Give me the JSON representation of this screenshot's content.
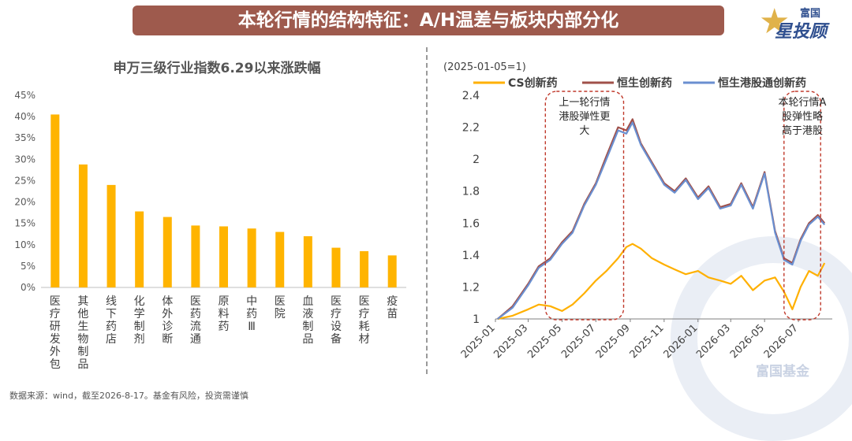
{
  "header": {
    "title": "本轮行情的结构特征：A/H温差与板块内部分化"
  },
  "brand": {
    "top": "富国",
    "main": "星投顾",
    "watermark": "富国基金"
  },
  "footer": {
    "source": "数据来源：wind，截至2026-8-17。基金有风险，投资需谨慎"
  },
  "colors": {
    "bar": "#FFB400",
    "cs": "#FFB000",
    "hs": "#A0504A",
    "hsgt": "#6A8FD0",
    "accent": "#C0392B"
  },
  "chart_data": [
    {
      "type": "bar",
      "title": "申万三级行业指数6.29以来涨跌幅",
      "categories": [
        "医疗研发外包",
        "其他生物制品",
        "线下药店",
        "化学制剂",
        "体外诊断",
        "医药流通",
        "原料药",
        "中药Ⅲ",
        "医院",
        "血液制品",
        "医疗设备",
        "医疗耗材",
        "疫苗"
      ],
      "values": [
        40.5,
        28.8,
        24.0,
        17.8,
        16.5,
        14.5,
        14.3,
        13.8,
        13.0,
        12.0,
        9.3,
        8.5,
        7.5
      ],
      "y_ticks": [
        "0%",
        "5%",
        "10%",
        "15%",
        "20%",
        "25%",
        "30%",
        "35%",
        "40%",
        "45%"
      ],
      "ylim": [
        0,
        45
      ]
    },
    {
      "type": "line",
      "subtitle": "(2025-01-05=1)",
      "x_ticks": [
        "2025-01",
        "2025-03",
        "2025-05",
        "2025-07",
        "2025-09",
        "2025-11",
        "2026-01",
        "2026-03",
        "2026-05",
        "2026-07"
      ],
      "y_ticks": [
        "1",
        "1.2",
        "1.4",
        "1.6",
        "1.8",
        "2",
        "2.2",
        "2.4"
      ],
      "ylim": [
        1,
        2.4
      ],
      "legend_position": "top",
      "series": [
        {
          "name": "CS创新药",
          "color": "#FFB000",
          "x": [
            "2025-01-05",
            "2025-02-01",
            "2025-03-01",
            "2025-03-20",
            "2025-04-10",
            "2025-05-01",
            "2025-05-20",
            "2025-06-10",
            "2025-07-01",
            "2025-07-20",
            "2025-08-10",
            "2025-08-25",
            "2025-09-05",
            "2025-09-20",
            "2025-10-10",
            "2025-11-01",
            "2025-11-20",
            "2025-12-10",
            "2026-01-01",
            "2026-01-20",
            "2026-02-10",
            "2026-03-01",
            "2026-03-20",
            "2026-04-10",
            "2026-05-01",
            "2026-05-20",
            "2026-06-05",
            "2026-06-20",
            "2026-07-05",
            "2026-07-20",
            "2026-08-05",
            "2026-08-17"
          ],
          "y": [
            1.0,
            1.02,
            1.06,
            1.09,
            1.08,
            1.05,
            1.09,
            1.16,
            1.24,
            1.3,
            1.38,
            1.45,
            1.47,
            1.44,
            1.38,
            1.34,
            1.31,
            1.28,
            1.3,
            1.26,
            1.24,
            1.22,
            1.27,
            1.18,
            1.24,
            1.26,
            1.17,
            1.06,
            1.2,
            1.3,
            1.27,
            1.35
          ]
        },
        {
          "name": "恒生创新药",
          "color": "#A0504A",
          "x": [
            "2025-01-05",
            "2025-02-01",
            "2025-03-01",
            "2025-03-20",
            "2025-04-10",
            "2025-05-01",
            "2025-05-20",
            "2025-06-10",
            "2025-07-01",
            "2025-07-20",
            "2025-08-10",
            "2025-08-25",
            "2025-09-05",
            "2025-09-20",
            "2025-10-10",
            "2025-11-01",
            "2025-11-20",
            "2025-12-10",
            "2026-01-01",
            "2026-01-20",
            "2026-02-10",
            "2026-03-01",
            "2026-03-20",
            "2026-04-10",
            "2026-05-01",
            "2026-05-20",
            "2026-06-05",
            "2026-06-20",
            "2026-07-05",
            "2026-07-20",
            "2026-08-05",
            "2026-08-17"
          ],
          "y": [
            1.0,
            1.08,
            1.22,
            1.33,
            1.38,
            1.48,
            1.55,
            1.72,
            1.85,
            2.02,
            2.2,
            2.18,
            2.25,
            2.1,
            1.98,
            1.85,
            1.8,
            1.88,
            1.76,
            1.83,
            1.7,
            1.72,
            1.85,
            1.7,
            1.92,
            1.55,
            1.38,
            1.35,
            1.5,
            1.6,
            1.65,
            1.6
          ]
        },
        {
          "name": "恒生港股通创新药",
          "color": "#6A8FD0",
          "x": [
            "2025-01-05",
            "2025-02-01",
            "2025-03-01",
            "2025-03-20",
            "2025-04-10",
            "2025-05-01",
            "2025-05-20",
            "2025-06-10",
            "2025-07-01",
            "2025-07-20",
            "2025-08-10",
            "2025-08-25",
            "2025-09-05",
            "2025-09-20",
            "2025-10-10",
            "2025-11-01",
            "2025-11-20",
            "2025-12-10",
            "2026-01-01",
            "2026-01-20",
            "2026-02-10",
            "2026-03-01",
            "2026-03-20",
            "2026-04-10",
            "2026-05-01",
            "2026-05-20",
            "2026-06-05",
            "2026-06-20",
            "2026-07-05",
            "2026-07-20",
            "2026-08-05",
            "2026-08-17"
          ],
          "y": [
            1.0,
            1.07,
            1.21,
            1.32,
            1.37,
            1.47,
            1.54,
            1.71,
            1.84,
            2.0,
            2.18,
            2.16,
            2.23,
            2.09,
            1.97,
            1.84,
            1.79,
            1.87,
            1.75,
            1.82,
            1.69,
            1.71,
            1.84,
            1.69,
            1.91,
            1.54,
            1.37,
            1.34,
            1.49,
            1.59,
            1.64,
            1.59
          ]
        }
      ],
      "annotations": [
        {
          "text": "上一轮行情港股弹性更大",
          "lines": [
            "上一轮行情",
            "港股弹性更",
            "大"
          ],
          "range": [
            "2025-04-01",
            "2025-08-20"
          ]
        },
        {
          "text": "本轮行情A股弹性略高于港股",
          "lines": [
            "本轮行情A",
            "股弹性略",
            "高于港股"
          ],
          "range": [
            "2026-06-05",
            "2026-08-10"
          ]
        }
      ]
    }
  ]
}
